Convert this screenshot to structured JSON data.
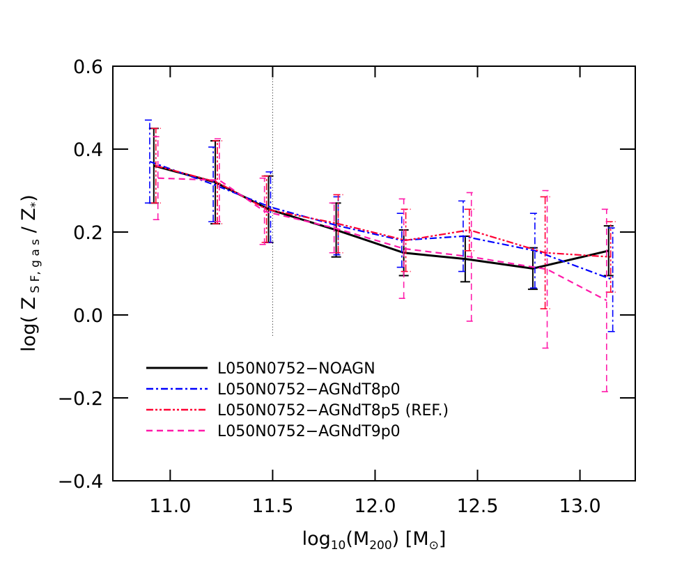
{
  "chart_data": {
    "type": "errorline",
    "xlabel": [
      {
        "text": "log"
      },
      {
        "text": "10",
        "sub": true
      },
      {
        "text": "(M"
      },
      {
        "text": "200",
        "sub": true
      },
      {
        "text": ")  [M"
      },
      {
        "text": "⊙",
        "sub": true
      },
      {
        "text": "]"
      }
    ],
    "ylabel": [
      {
        "text": "log( Z"
      },
      {
        "text": " S F, g a s",
        "sub": true
      },
      {
        "text": " / Z"
      },
      {
        "text": "*",
        "sub": true
      },
      {
        "text": ")"
      }
    ],
    "xlim": [
      10.72,
      13.27
    ],
    "ylim": [
      -0.4,
      0.6
    ],
    "xticks": [
      {
        "value": 11,
        "label": "11.0"
      },
      11.5,
      {
        "value": 12,
        "label": "12.0"
      },
      12.5,
      {
        "value": 13,
        "label": "13.0"
      }
    ],
    "yticks": [
      {
        "value": -0.4,
        "label": "−0.4"
      },
      {
        "value": -0.2,
        "label": "−0.2"
      },
      {
        "value": 0,
        "label": "0.0"
      },
      0.2,
      0.4,
      0.6
    ],
    "vline": {
      "x": 11.5,
      "y": [
        -0.05,
        0.6
      ]
    },
    "series": [
      {
        "name": "L050N0752−NOAGN",
        "color": "#000000",
        "dash": "solid",
        "x": [
          10.92,
          11.22,
          11.48,
          11.81,
          12.14,
          12.44,
          12.77,
          13.14
        ],
        "values": [
          0.36,
          0.32,
          0.255,
          0.205,
          0.15,
          0.135,
          0.112,
          0.155
        ],
        "errors": [
          0.09,
          0.1,
          0.08,
          0.065,
          0.055,
          0.055,
          0.05,
          0.06
        ]
      },
      {
        "name": "L050N0752−AGNdT8p0",
        "color": "#0000ff",
        "dash": "dashdot",
        "x": [
          10.9,
          11.21,
          11.49,
          11.82,
          12.13,
          12.43,
          12.78,
          13.16
        ],
        "values": [
          0.37,
          0.315,
          0.26,
          0.215,
          0.18,
          0.19,
          0.155,
          0.085
        ],
        "errors": [
          0.1,
          0.09,
          0.085,
          0.07,
          0.065,
          0.085,
          0.09,
          0.125
        ]
      },
      {
        "name": "L050N0752−AGNdT8p5 (REF.)",
        "color": "#ff0033",
        "dash": "dashdotdot",
        "x": [
          10.93,
          11.23,
          11.47,
          11.82,
          12.15,
          12.46,
          12.83,
          13.15
        ],
        "values": [
          0.36,
          0.32,
          0.255,
          0.22,
          0.18,
          0.205,
          0.15,
          0.14
        ],
        "errors": [
          0.09,
          0.1,
          0.08,
          0.07,
          0.075,
          0.05,
          0.135,
          0.085
        ]
      },
      {
        "name": "L050N0752−AGNdT9p0",
        "color": "#ff1aaa",
        "dash": "dashed",
        "x": [
          10.94,
          11.24,
          11.46,
          11.8,
          12.14,
          12.47,
          12.84,
          13.13
        ],
        "values": [
          0.33,
          0.325,
          0.25,
          0.21,
          0.16,
          0.14,
          0.11,
          0.035
        ],
        "errors": [
          0.1,
          0.1,
          0.08,
          0.06,
          0.12,
          0.155,
          0.19,
          0.22
        ]
      }
    ]
  }
}
